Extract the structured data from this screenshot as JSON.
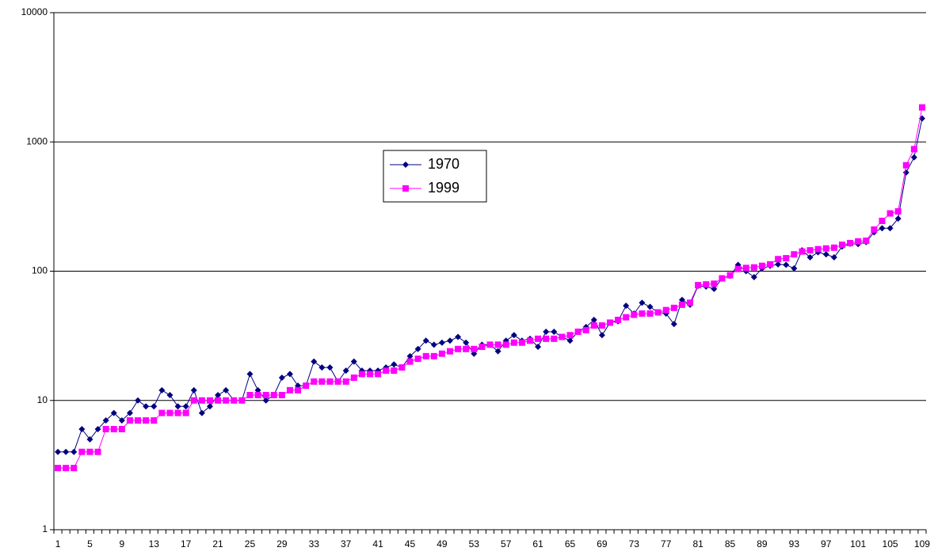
{
  "chart_data": {
    "type": "line",
    "log_scale": true,
    "grid": true,
    "legend_position": "center",
    "categories": [
      "1",
      null,
      null,
      null,
      "5",
      null,
      null,
      null,
      "9",
      null,
      null,
      null,
      "13",
      null,
      null,
      null,
      "17",
      null,
      null,
      null,
      "21",
      null,
      null,
      null,
      "25",
      null,
      null,
      null,
      "29",
      null,
      null,
      null,
      "33",
      null,
      null,
      null,
      "37",
      null,
      null,
      null,
      "41",
      null,
      null,
      null,
      "45",
      null,
      null,
      null,
      "49",
      null,
      null,
      null,
      "53",
      null,
      null,
      null,
      "57",
      null,
      null,
      null,
      "61",
      null,
      null,
      null,
      "65",
      null,
      null,
      null,
      "69",
      null,
      null,
      null,
      "73",
      null,
      null,
      null,
      "77",
      null,
      null,
      null,
      "81",
      null,
      null,
      null,
      "85",
      null,
      null,
      null,
      "89",
      null,
      null,
      null,
      "93",
      null,
      null,
      null,
      "97",
      null,
      null,
      null,
      "101",
      null,
      null,
      null,
      "105",
      null,
      null,
      null,
      "109"
    ],
    "series": [
      {
        "name": "1970",
        "color": "#000080",
        "marker": "diamond",
        "values": [
          4,
          4,
          4,
          6,
          5,
          6,
          7,
          8,
          7,
          8,
          10,
          9,
          9,
          12,
          11,
          9,
          9,
          12,
          8,
          9,
          11,
          12,
          10,
          10,
          16,
          12,
          10,
          11,
          15,
          16,
          13,
          13,
          20,
          18,
          18,
          14,
          17,
          20,
          17,
          17,
          17,
          18,
          19,
          18,
          22,
          25,
          29,
          27,
          28,
          29,
          31,
          28,
          23,
          27,
          27,
          24,
          29,
          32,
          29,
          30,
          26,
          34,
          34,
          31,
          29,
          34,
          37,
          42,
          32,
          40,
          41,
          54,
          47,
          57,
          53,
          48,
          47,
          39,
          60,
          55,
          77,
          76,
          73,
          88,
          92,
          112,
          100,
          90,
          105,
          110,
          113,
          112,
          105,
          145,
          128,
          140,
          135,
          128,
          155,
          163,
          162,
          168,
          200,
          215,
          215,
          255,
          580,
          760,
          1520
        ]
      },
      {
        "name": "1999",
        "color": "#ff00ff",
        "marker": "square",
        "values": [
          3,
          3,
          3,
          4,
          4,
          4,
          6,
          6,
          6,
          7,
          7,
          7,
          7,
          8,
          8,
          8,
          8,
          10,
          10,
          10,
          10,
          10,
          10,
          10,
          11,
          11,
          11,
          11,
          11,
          12,
          12,
          13,
          14,
          14,
          14,
          14,
          14,
          15,
          16,
          16,
          16,
          17,
          17,
          18,
          20,
          21,
          22,
          22,
          23,
          24,
          25,
          25,
          25,
          26,
          27,
          27,
          27,
          28,
          28,
          29,
          30,
          30,
          30,
          31,
          32,
          34,
          35,
          38,
          38,
          40,
          42,
          44,
          46,
          47,
          47,
          48,
          50,
          52,
          55,
          57,
          78,
          79,
          80,
          88,
          93,
          104,
          106,
          107,
          110,
          113,
          124,
          126,
          135,
          142,
          145,
          148,
          150,
          152,
          160,
          165,
          170,
          172,
          210,
          245,
          280,
          290,
          660,
          880,
          1850
        ]
      }
    ],
    "ylim": [
      1,
      10000
    ],
    "yticks": [
      1,
      10,
      100,
      1000,
      10000
    ]
  }
}
